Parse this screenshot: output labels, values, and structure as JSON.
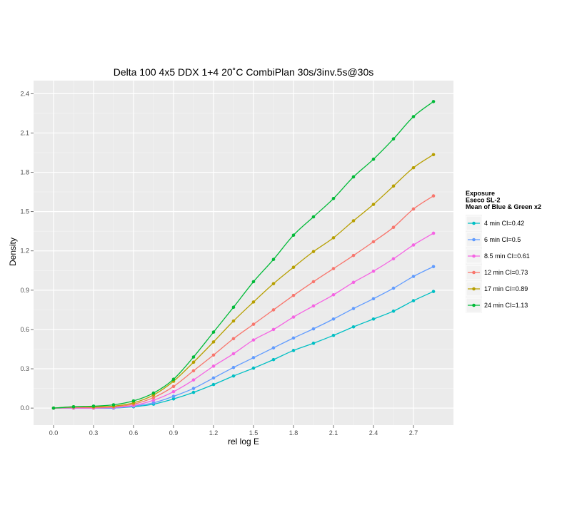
{
  "chart_data": {
    "type": "line",
    "title": "Delta 100 4x5 DDX 1+4 20˚C CombiPlan 30s/3inv.5s@30s",
    "xlabel": "rel log E",
    "ylabel": "Density",
    "xlim": [
      -0.15,
      3.0
    ],
    "ylim": [
      -0.13,
      2.5
    ],
    "xticks": [
      0.0,
      0.3,
      0.6,
      0.9,
      1.2,
      1.5,
      1.8,
      2.1,
      2.4,
      2.7
    ],
    "xtick_labels": [
      "0.0",
      "0.3",
      "0.6",
      "0.9",
      "1.2",
      "1.5",
      "1.8",
      "2.1",
      "2.4",
      "2.7"
    ],
    "yticks": [
      0.0,
      0.3,
      0.6,
      0.9,
      1.2,
      1.5,
      1.8,
      2.1,
      2.4
    ],
    "ytick_labels": [
      "0.0",
      "0.3",
      "0.6",
      "0.9",
      "1.2",
      "1.5",
      "1.8",
      "2.1",
      "2.4"
    ],
    "grid": true,
    "legend": {
      "title_lines": [
        "Exposure",
        "Eseco SL-2",
        "Mean of Blue & Green x2"
      ],
      "placement": "right"
    },
    "x": [
      0.0,
      0.15,
      0.3,
      0.45,
      0.6,
      0.75,
      0.9,
      1.05,
      1.2,
      1.35,
      1.5,
      1.65,
      1.8,
      1.95,
      2.1,
      2.25,
      2.4,
      2.55,
      2.7,
      2.85
    ],
    "series": [
      {
        "name": "4 min CI=0.42",
        "color": "#00BFC4",
        "values": [
          0.0,
          0.0,
          0.0,
          0.0,
          0.01,
          0.03,
          0.07,
          0.12,
          0.18,
          0.245,
          0.305,
          0.37,
          0.44,
          0.495,
          0.555,
          0.62,
          0.68,
          0.74,
          0.82,
          0.89
        ]
      },
      {
        "name": "6 min CI=0.5",
        "color": "#619CFF",
        "values": [
          0.0,
          0.0,
          0.0,
          0.0,
          0.015,
          0.04,
          0.09,
          0.15,
          0.23,
          0.31,
          0.385,
          0.46,
          0.535,
          0.605,
          0.68,
          0.76,
          0.835,
          0.915,
          1.005,
          1.08
        ]
      },
      {
        "name": "8.5 min CI=0.61",
        "color": "#F564E3",
        "values": [
          0.0,
          0.0,
          0.0,
          0.005,
          0.02,
          0.06,
          0.125,
          0.215,
          0.32,
          0.415,
          0.52,
          0.6,
          0.695,
          0.78,
          0.865,
          0.96,
          1.045,
          1.14,
          1.245,
          1.335
        ]
      },
      {
        "name": "12 min CI=0.73",
        "color": "#F8766D",
        "values": [
          0.0,
          0.005,
          0.005,
          0.01,
          0.03,
          0.08,
          0.165,
          0.285,
          0.405,
          0.53,
          0.64,
          0.75,
          0.86,
          0.965,
          1.065,
          1.165,
          1.27,
          1.38,
          1.52,
          1.62
        ]
      },
      {
        "name": "17 min CI=0.89",
        "color": "#B79F00",
        "values": [
          0.0,
          0.01,
          0.01,
          0.015,
          0.04,
          0.1,
          0.205,
          0.35,
          0.505,
          0.665,
          0.81,
          0.95,
          1.075,
          1.195,
          1.3,
          1.43,
          1.555,
          1.695,
          1.835,
          1.935
        ]
      },
      {
        "name": "24 min CI=1.13",
        "color": "#00BA38",
        "values": [
          0.0,
          0.01,
          0.015,
          0.025,
          0.055,
          0.115,
          0.22,
          0.39,
          0.58,
          0.77,
          0.965,
          1.135,
          1.32,
          1.46,
          1.6,
          1.765,
          1.9,
          2.055,
          2.225,
          2.34
        ]
      }
    ]
  }
}
